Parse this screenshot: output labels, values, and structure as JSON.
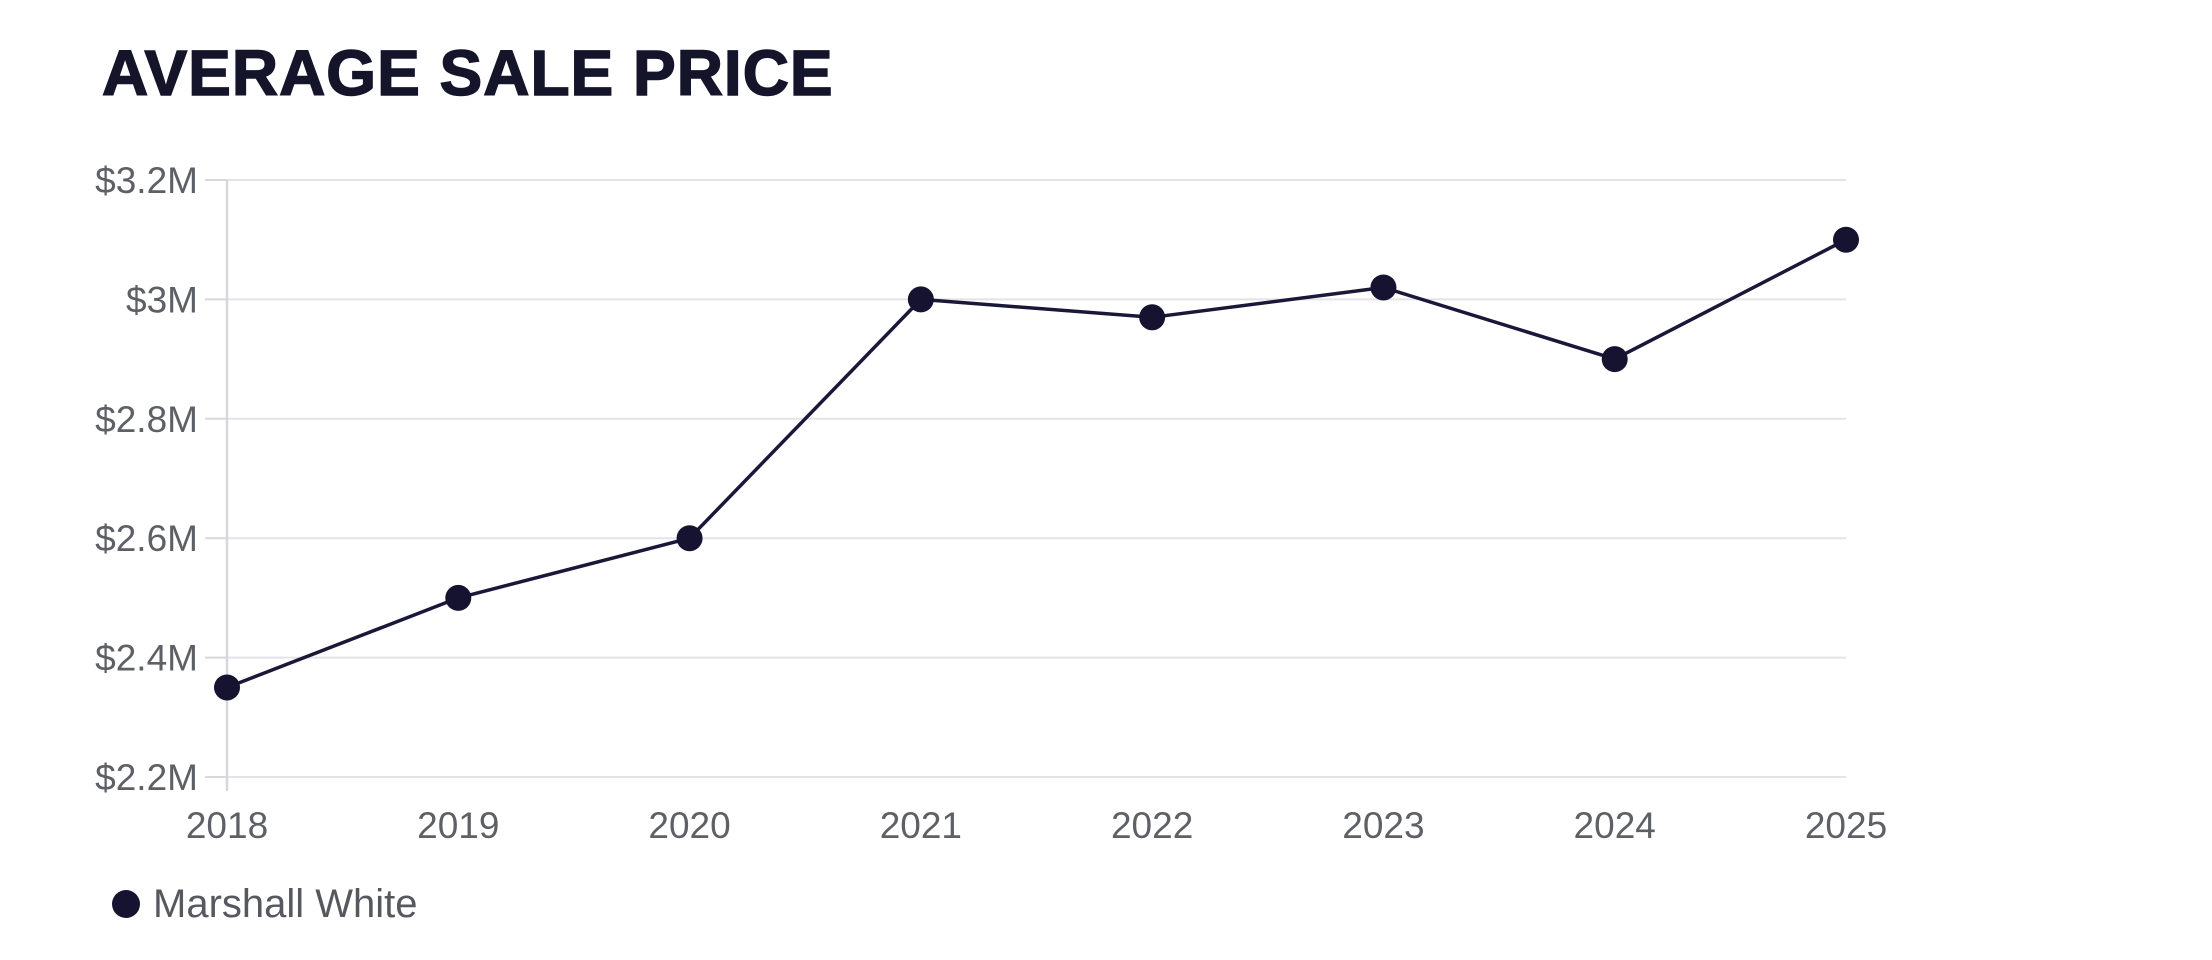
{
  "chart_data": {
    "type": "line",
    "title": "AVERAGE SALE PRICE",
    "x": [
      "2018",
      "2019",
      "2020",
      "2021",
      "2022",
      "2023",
      "2024",
      "2025"
    ],
    "series": [
      {
        "name": "Marshall White",
        "values": [
          2.35,
          2.5,
          2.6,
          3.0,
          2.97,
          3.02,
          2.9,
          3.1
        ],
        "color": "#191838",
        "marker": "circle",
        "marker_color": "#151330"
      }
    ],
    "xlabel": "",
    "ylabel": "",
    "y_unit": "millions USD",
    "ylim": [
      2.2,
      3.2
    ],
    "y_tick_labels": [
      "$2.2M",
      "$2.4M",
      "$2.6M",
      "$2.8M",
      "$3M",
      "$3.2M"
    ],
    "grid": "horizontal",
    "legend_position": "bottom-left"
  },
  "colors": {
    "background": "#ffffff",
    "title": "#14142b",
    "axis_label": "#5d6166",
    "gridline": "#e4e4e8",
    "axis_line": "#d7d7dd",
    "legend_text": "#55585e"
  }
}
